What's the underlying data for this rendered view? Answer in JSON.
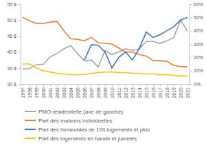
{
  "chart_data": {
    "type": "line",
    "categories": [
      "1997",
      "1998",
      "1999",
      "2000",
      "2001",
      "2002",
      "2003",
      "2004",
      "2005",
      "2006",
      "2007",
      "2008",
      "2009",
      "2010",
      "2011",
      "2012",
      "2013",
      "2014",
      "2015",
      "2016",
      "2017",
      "2018",
      "2019",
      "2020",
      "2021"
    ],
    "series": [
      {
        "name": "PMO résidentielle (axe de gauche)",
        "color": "#a5a5a5",
        "values": [
          34.7,
          34.8,
          36,
          36.2,
          38.5,
          39.5,
          41,
          42,
          39.5,
          37.2,
          37.5,
          35.3,
          40.5,
          39.2,
          40,
          41,
          40.5,
          41,
          43.3,
          43.3,
          42.7,
          43.5,
          44.5,
          50,
          46.5
        ]
      },
      {
        "name": "Part des maisons individuelles",
        "color": "#ed7d31",
        "axis": "y2",
        "values": [
          50,
          47.5,
          45.5,
          45.5,
          46.5,
          47,
          40,
          34,
          33.5,
          32.5,
          35,
          31,
          30.5,
          30,
          27,
          24,
          24,
          22,
          21,
          17.5,
          17.5,
          17,
          14,
          13,
          13
        ]
      },
      {
        "name": "Part des immeubles de 100 logements et plus",
        "color": "#4472c4",
        "axis": "y2",
        "values": [
          null,
          null,
          null,
          null,
          null,
          null,
          null,
          null,
          null,
          18,
          29.5,
          29,
          24,
          12,
          20,
          24,
          18,
          27,
          39,
          35,
          37,
          40,
          43,
          48,
          50
        ]
      },
      {
        "name": "Part des logements en bande et jumelés",
        "color": "#ffc000",
        "axis": "y2",
        "values": [
          15,
          15,
          12,
          10,
          9,
          8,
          7.5,
          7,
          7,
          7,
          8,
          8.5,
          9,
          9,
          8.5,
          8.5,
          8,
          8,
          7.5,
          7.5,
          7,
          7,
          6.5,
          6,
          6
        ]
      }
    ],
    "ylim": [
      30,
      55
    ],
    "yticks": [
      {
        "value": 30,
        "label": "30 $"
      },
      {
        "value": 35,
        "label": "35 $"
      },
      {
        "value": 40,
        "label": "40 $"
      },
      {
        "value": 45,
        "label": "45 $"
      },
      {
        "value": 50,
        "label": "50 $"
      },
      {
        "value": 55,
        "label": "55 $"
      }
    ],
    "y2lim": [
      0,
      60
    ],
    "y2ticks": [
      {
        "value": 0,
        "label": "0%"
      },
      {
        "value": 10,
        "label": "10%"
      },
      {
        "value": 20,
        "label": "20%"
      },
      {
        "value": 30,
        "label": "30%"
      },
      {
        "value": 40,
        "label": "40%"
      },
      {
        "value": 50,
        "label": "50%"
      },
      {
        "value": 60,
        "label": "60%"
      }
    ],
    "grid": false,
    "legend": "bottom"
  }
}
